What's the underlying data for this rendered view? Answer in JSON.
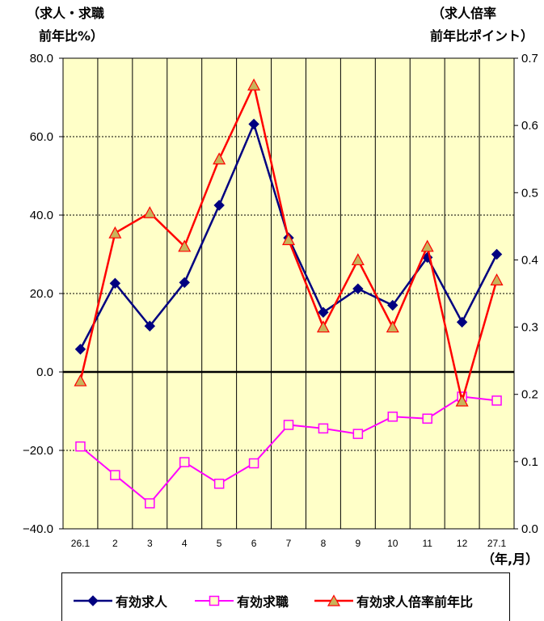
{
  "chart_data": {
    "type": "line",
    "categories": [
      "26.1",
      "2",
      "3",
      "4",
      "5",
      "6",
      "7",
      "8",
      "9",
      "10",
      "11",
      "12",
      "27.1"
    ],
    "left_axis": {
      "title_line1": "（求人・求職",
      "title_line2": "前年比%）",
      "ylim": [
        -40,
        80
      ],
      "ticks": [
        "80.0",
        "60.0",
        "40.0",
        "20.0",
        "0.0",
        "−20.0",
        "−40.0"
      ]
    },
    "right_axis": {
      "title_line1": "（求人倍率",
      "title_line2": "前年比ポイント）",
      "ylim": [
        0.0,
        0.7
      ],
      "ticks": [
        "0.7",
        "0.6",
        "0.5",
        "0.4",
        "0.3",
        "0.2",
        "0.1",
        "0.0"
      ]
    },
    "xlabel": "（年,月）",
    "series": [
      {
        "name": "有効求人",
        "axis": "left",
        "color": "#000080",
        "marker": "diamond",
        "values": [
          5.8,
          22.6,
          11.7,
          22.8,
          42.5,
          63.2,
          34.2,
          15.2,
          21.2,
          17.0,
          29.2,
          12.7,
          30.0
        ]
      },
      {
        "name": "有効求職",
        "axis": "left",
        "color": "#ff00ff",
        "marker": "square",
        "values": [
          -19.0,
          -26.3,
          -33.5,
          -23.0,
          -28.5,
          -23.3,
          -13.5,
          -14.4,
          -15.8,
          -11.4,
          -11.9,
          -6.3,
          -7.3
        ]
      },
      {
        "name": "有効求人倍率前年比",
        "axis": "right",
        "color": "#ff0000",
        "marker": "triangle",
        "values": [
          0.22,
          0.44,
          0.47,
          0.42,
          0.55,
          0.66,
          0.43,
          0.3,
          0.4,
          0.3,
          0.42,
          0.19,
          0.37
        ]
      }
    ],
    "grid": true,
    "legend_position": "bottom"
  }
}
